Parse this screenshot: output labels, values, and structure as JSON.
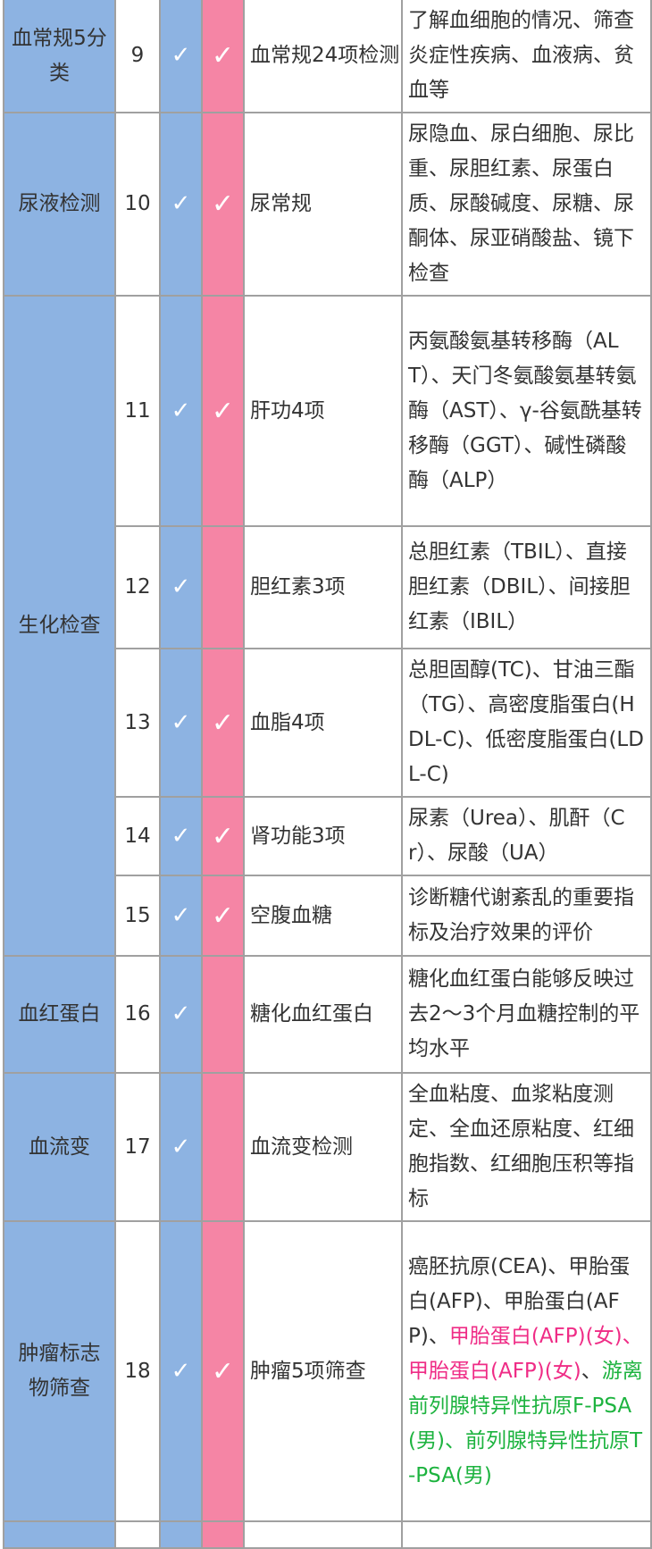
{
  "colors": {
    "blue_column": "#8db3e2",
    "pink_column": "#f585a5",
    "female_text": "#ef2c86",
    "male_text": "#1db33f",
    "border": "#a0a0a0"
  },
  "check_icon": "✓",
  "rows": [
    {
      "category": "血常规5分类",
      "cat_span": 1,
      "num": "9",
      "blue": true,
      "pink": true,
      "item": "血常规24项检测",
      "desc": [
        {
          "text": "了解血细胞的情况、筛查炎症性疾病、血液病、贫血等"
        }
      ]
    },
    {
      "category": "尿液检测",
      "cat_span": 1,
      "num": "10",
      "blue": true,
      "pink": true,
      "item": "尿常规",
      "desc": [
        {
          "text": "尿隐血、尿白细胞、尿比重、尿胆红素、尿蛋白质、尿酸碱度、尿糖、尿酮体、尿亚硝酸盐、镜下检查"
        }
      ]
    },
    {
      "category": "生化检查",
      "cat_span": 5,
      "num": "11",
      "blue": true,
      "pink": true,
      "item": "肝功4项",
      "desc": [
        {
          "text": "丙氨酸氨基转移酶（ALT）、天门冬氨酸氨基转氨酶（AST）、γ-谷氨酰基转移酶（GGT）、碱性磷酸酶（ALP）"
        }
      ]
    },
    {
      "num": "12",
      "blue": true,
      "pink": false,
      "item": "胆红素3项",
      "desc": [
        {
          "text": "总胆红素（TBIL）、直接胆红素（DBIL）、间接胆红素（IBIL）"
        }
      ]
    },
    {
      "num": "13",
      "blue": true,
      "pink": true,
      "item": "血脂4项",
      "desc": [
        {
          "text": "总胆固醇(TC)、甘油三酯（TG）、高密度脂蛋白(HDL-C)、低密度脂蛋白(LDL-C)"
        }
      ]
    },
    {
      "num": "14",
      "blue": true,
      "pink": true,
      "item": "肾功能3项",
      "desc": [
        {
          "text": "尿素（Urea）、肌酐（Cr）、尿酸（UA）"
        }
      ]
    },
    {
      "num": "15",
      "blue": true,
      "pink": true,
      "item": "空腹血糖",
      "desc": [
        {
          "text": "诊断糖代谢紊乱的重要指标及治疗效果的评价"
        }
      ]
    },
    {
      "category": "血红蛋白",
      "cat_span": 1,
      "num": "16",
      "blue": true,
      "pink": false,
      "item": "糖化血红蛋白",
      "desc": [
        {
          "text": "糖化血红蛋白能够反映过去2～3个月血糖控制的平均水平"
        }
      ]
    },
    {
      "category": "血流变",
      "cat_span": 1,
      "num": "17",
      "blue": true,
      "pink": false,
      "item": "血流变检测",
      "desc": [
        {
          "text": "全血粘度、血浆粘度测定、全血还原粘度、红细胞指数、红细胞压积等指标"
        }
      ]
    },
    {
      "category": "肿瘤标志物筛查",
      "cat_span": 1,
      "num": "18",
      "blue": true,
      "pink": true,
      "item": "肿瘤5项筛查",
      "desc": [
        {
          "text": "癌胚抗原(CEA)、甲胎蛋白(AFP)、甲胎蛋白(AFP)、"
        },
        {
          "text": "甲胎蛋白(AFP)(女)、甲胎蛋白(AFP)(女)",
          "tone": "female"
        },
        {
          "text": "、"
        },
        {
          "text": "游离前列腺特异性抗原F-PSA(男)、前列腺特异性抗原T-PSA(男)",
          "tone": "male"
        }
      ]
    }
  ]
}
